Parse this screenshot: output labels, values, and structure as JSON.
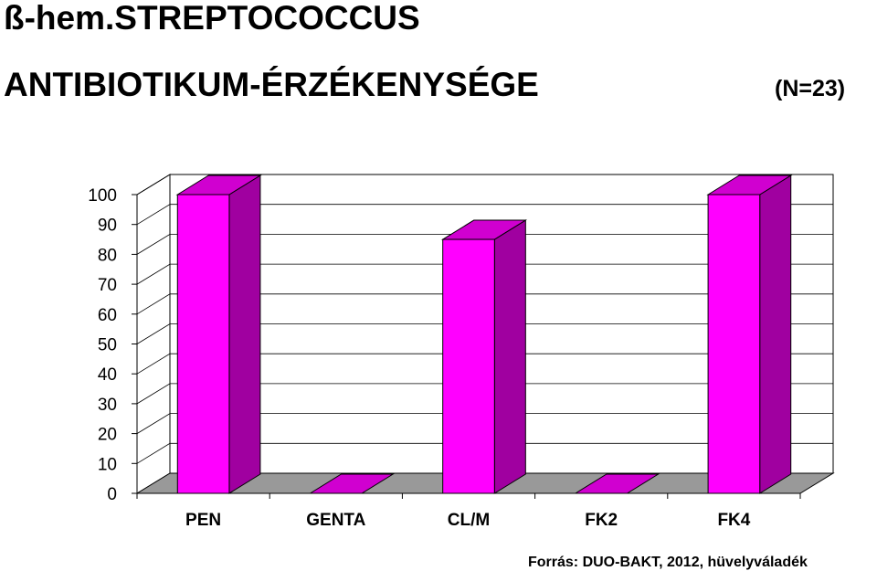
{
  "chart_data": {
    "type": "bar3d",
    "title": [
      "ß-hem.STREPTOCOCCUS",
      "ANTIBIOTIKUM-ÉRZÉKENYSÉGE"
    ],
    "subtitle": "(N=23)",
    "categories": [
      "PEN",
      "GENTA",
      "CL/M",
      "FK2",
      "FK4"
    ],
    "values": [
      100,
      0,
      85,
      0,
      100
    ],
    "color": "#ff00ff",
    "ylim": [
      0,
      100
    ],
    "yticks": [
      0,
      10,
      20,
      30,
      40,
      50,
      60,
      70,
      80,
      90,
      100
    ],
    "grid": true,
    "source": "Forrás: DUO-BAKT, 2012, hüvelyváladék"
  }
}
